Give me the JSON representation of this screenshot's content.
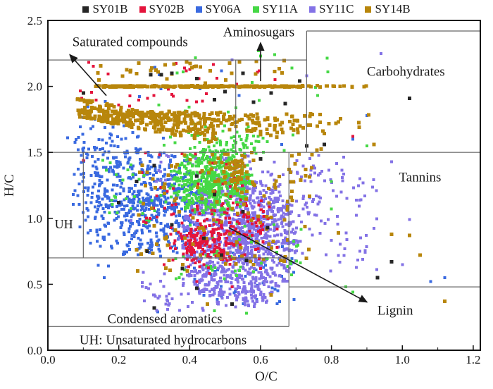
{
  "chart_data": {
    "type": "scatter",
    "title": "",
    "xlabel": "O/C",
    "ylabel": "H/C",
    "xlim": [
      0,
      1.22
    ],
    "ylim": [
      0,
      2.5
    ],
    "grid": false,
    "legend_position": "top-center",
    "x_tick_values": [
      0,
      0.2,
      0.4,
      0.6,
      0.8,
      1.0,
      1.2
    ],
    "x_tick_labels": [
      "0.0",
      "0.2",
      "0.4",
      "0.6",
      "0.8",
      "1.0",
      "1.2"
    ],
    "x_minor_step": 0.1,
    "y_tick_values": [
      0,
      0.5,
      1.0,
      1.5,
      2.0,
      2.5
    ],
    "y_tick_labels": [
      "0.0",
      "0.5",
      "1.0",
      "1.5",
      "2.0",
      "2.5"
    ],
    "seed": 1234567,
    "line_color": "#666666",
    "border_color": "#111111",
    "legend_order": [
      "SY01B",
      "SY02B",
      "SY06A",
      "SY11A",
      "SY11C",
      "SY14B"
    ],
    "region_lines": [
      {
        "x1": 0,
        "y1": 2.2,
        "x2": 0.73,
        "y2": 2.2
      },
      {
        "x1": 0,
        "y1": 1.5,
        "x2": 1.22,
        "y2": 1.5
      },
      {
        "x1": 0.53,
        "y1": 1.5,
        "x2": 0.53,
        "y2": 2.2
      },
      {
        "x1": 0.73,
        "y1": 1.5,
        "x2": 0.73,
        "y2": 2.42
      },
      {
        "x1": 0.73,
        "y1": 2.42,
        "x2": 1.22,
        "y2": 2.42
      },
      {
        "x1": 0.1,
        "y1": 0.7,
        "x2": 0.1,
        "y2": 1.5
      },
      {
        "x1": 0,
        "y1": 0.7,
        "x2": 0.68,
        "y2": 0.7
      },
      {
        "x1": 0.68,
        "y1": 0.18,
        "x2": 0.68,
        "y2": 1.5
      },
      {
        "x1": 0,
        "y1": 0.18,
        "x2": 0.68,
        "y2": 0.18
      },
      {
        "x1": 0.68,
        "y1": 0.48,
        "x2": 1.22,
        "y2": 0.48
      }
    ],
    "region_labels": [
      {
        "id": "saturated-compounds",
        "label": "Saturated compounds",
        "x": 0.232,
        "y": 2.335,
        "size": 19
      },
      {
        "id": "aminosugars",
        "label": "Aminosugars",
        "x": 0.595,
        "y": 2.41,
        "size": 19
      },
      {
        "id": "carbohydrates",
        "label": "Carbohydrates",
        "x": 1.01,
        "y": 2.11,
        "size": 19
      },
      {
        "id": "tannins",
        "label": "Tannins",
        "x": 1.05,
        "y": 1.31,
        "size": 19
      },
      {
        "id": "lignin",
        "label": "Lignin",
        "x": 0.98,
        "y": 0.3,
        "size": 19
      },
      {
        "id": "condensed-aromatics",
        "label": "Condensed aromatics",
        "x": 0.33,
        "y": 0.235,
        "size": 19
      },
      {
        "id": "uh",
        "label": "UH",
        "x": 0.045,
        "y": 0.955,
        "size": 18
      }
    ],
    "footnote": {
      "label": "UH: Unsaturated hydrocarbons",
      "x": 0.325,
      "y": 0.075,
      "size": 19
    },
    "arrows": [
      {
        "id": "saturated-arrow",
        "x1": 0.165,
        "y1": 1.93,
        "x2": 0.062,
        "y2": 2.24
      },
      {
        "id": "aminosugars-arrow",
        "x1": 0.6,
        "y1": 2.04,
        "x2": 0.6,
        "y2": 2.33
      },
      {
        "id": "lignin-arrow",
        "x1": 0.51,
        "y1": 0.93,
        "x2": 0.9,
        "y2": 0.365
      }
    ],
    "series": [
      {
        "name": "SY06A",
        "color": "#3a6ae0",
        "size": 4,
        "clusters": [
          {
            "type": "rays",
            "cx": 0.28,
            "cy": 1.12,
            "ax": 0.17,
            "ay": 0.42,
            "nrays": 30,
            "a0": 0,
            "a1": 360,
            "rpow": 0.72,
            "n": 620
          },
          {
            "type": "gauss",
            "cx": 0.12,
            "cy": 1.3,
            "sx": 0.035,
            "sy": 0.28,
            "n": 90
          },
          {
            "type": "gauss",
            "cx": 0.19,
            "cy": 1.63,
            "sx": 0.05,
            "sy": 0.07,
            "n": 25
          },
          {
            "type": "uniform",
            "x0": 0.12,
            "x1": 0.55,
            "y0": 1.78,
            "y1": 2.15,
            "n": 10
          },
          {
            "type": "uniform",
            "x0": 0.4,
            "x1": 0.7,
            "y0": 0.35,
            "y1": 0.8,
            "n": 55
          },
          {
            "type": "points",
            "pts": [
              [
                0.9,
                1.78
              ],
              [
                1.12,
                0.55
              ],
              [
                0.31,
                0.29
              ],
              [
                0.66,
                1.56
              ],
              [
                0.86,
                1.6
              ],
              [
                1.08,
                0.52
              ]
            ]
          }
        ]
      },
      {
        "name": "SY11C",
        "color": "#8372e6",
        "size": 4,
        "clusters": [
          {
            "type": "rays",
            "cx": 0.54,
            "cy": 0.82,
            "ax": 0.17,
            "ay": 0.5,
            "nrays": 40,
            "a0": 0,
            "a1": 360,
            "rpow": 0.7,
            "n": 1150,
            "clip": [
              0.2,
              0.95,
              0.26,
              1.45
            ]
          },
          {
            "type": "gauss",
            "cx": 0.63,
            "cy": 1.08,
            "sx": 0.1,
            "sy": 0.14,
            "n": 160
          },
          {
            "type": "uniform",
            "x0": 0.3,
            "x1": 0.85,
            "y0": 1.25,
            "y1": 1.48,
            "n": 70
          },
          {
            "type": "uniform",
            "x0": 0.78,
            "x1": 0.93,
            "y0": 0.6,
            "y1": 1.3,
            "n": 38
          },
          {
            "type": "uniform",
            "x0": 0.25,
            "x1": 0.45,
            "y0": 0.3,
            "y1": 0.6,
            "n": 40
          },
          {
            "type": "points",
            "pts": [
              [
                0.94,
                2.25
              ],
              [
                0.73,
                2.08
              ],
              [
                0.52,
                2.2
              ],
              [
                1.02,
                0.99
              ],
              [
                1.0,
                0.65
              ],
              [
                0.88,
                1.3
              ],
              [
                0.97,
                1.43
              ]
            ]
          }
        ]
      },
      {
        "name": "SY11A",
        "color": "#46d846",
        "size": 4,
        "clusters": [
          {
            "type": "rays",
            "cx": 0.46,
            "cy": 1.27,
            "ax": 0.115,
            "ay": 0.25,
            "nrays": 26,
            "a0": 0,
            "a1": 360,
            "rpow": 0.7,
            "n": 560
          },
          {
            "type": "gauss",
            "cx": 0.5,
            "cy": 1.56,
            "sx": 0.07,
            "sy": 0.07,
            "n": 85
          },
          {
            "type": "uniform",
            "x0": 0.3,
            "x1": 0.8,
            "y0": 1.7,
            "y1": 2.28,
            "n": 16
          },
          {
            "type": "uniform",
            "x0": 0.35,
            "x1": 0.72,
            "y0": 0.5,
            "y1": 1.0,
            "n": 50
          },
          {
            "type": "uniform",
            "x0": 0.15,
            "x1": 0.35,
            "y0": 0.95,
            "y1": 1.45,
            "n": 30
          },
          {
            "type": "points",
            "pts": [
              [
                0.6,
                2.23
              ],
              [
                0.64,
                2.24
              ],
              [
                0.79,
                2.11
              ],
              [
                0.9,
                1.55
              ],
              [
                0.47,
                0.3
              ],
              [
                0.56,
                0.28
              ],
              [
                0.8,
                1.28
              ],
              [
                0.8,
                1.07
              ],
              [
                0.84,
                0.48
              ],
              [
                0.86,
                0.44
              ]
            ]
          }
        ]
      },
      {
        "name": "SY02B",
        "color": "#e4143c",
        "size": 4,
        "clusters": [
          {
            "type": "gauss",
            "cx": 0.45,
            "cy": 0.82,
            "sx": 0.05,
            "sy": 0.09,
            "n": 210
          },
          {
            "type": "gauss",
            "cx": 0.56,
            "cy": 0.97,
            "sx": 0.055,
            "sy": 0.09,
            "n": 55
          },
          {
            "type": "uniform",
            "x0": 0.25,
            "x1": 0.55,
            "y0": 0.95,
            "y1": 1.5,
            "n": 45
          },
          {
            "type": "uniform",
            "x0": 0.08,
            "x1": 0.45,
            "y0": 1.88,
            "y1": 2.2,
            "n": 22
          },
          {
            "type": "uniform",
            "x0": 0.45,
            "x1": 0.65,
            "y0": 1.9,
            "y1": 2.25,
            "n": 6
          },
          {
            "type": "points",
            "pts": [
              [
                0.86,
                1.62
              ],
              [
                0.1,
                1.44
              ],
              [
                0.2,
                1.86
              ],
              [
                0.23,
                1.85
              ],
              [
                0.4,
                2.13
              ],
              [
                0.42,
                0.52
              ],
              [
                0.52,
                0.48
              ],
              [
                0.6,
                0.62
              ]
            ]
          }
        ]
      },
      {
        "name": "SY14B",
        "color": "#b8860b",
        "size": 5,
        "clusters": [
          {
            "type": "hline",
            "y": 2.0,
            "x0": 0.13,
            "x1": 0.72,
            "jy": 0.005,
            "n": 240
          },
          {
            "type": "hline",
            "y": 2.0,
            "x0": 0.72,
            "x1": 0.9,
            "jy": 0.005,
            "n": 14
          },
          {
            "type": "diag",
            "x0": 0.09,
            "y0": 1.9,
            "dx": 0.38,
            "dy": -0.2,
            "rows": 6,
            "rowGap": 0.025,
            "tpow": 1.2,
            "n": 270
          },
          {
            "type": "rays",
            "cx": 0.24,
            "cy": 1.8,
            "ax": 0.55,
            "ay": 0.28,
            "nrays": 12,
            "a0": -40,
            "a1": -2,
            "rpow": 0.9,
            "n": 170,
            "clip": [
              0.2,
              0.95,
              1.5,
              1.98
            ]
          },
          {
            "type": "gauss",
            "cx": 0.53,
            "cy": 1.35,
            "sx": 0.025,
            "sy": 0.09,
            "n": 60
          },
          {
            "type": "uniform",
            "x0": 0.12,
            "x1": 0.7,
            "y0": 2.02,
            "y1": 2.2,
            "n": 35
          },
          {
            "type": "uniform",
            "x0": 0.25,
            "x1": 0.75,
            "y0": 0.6,
            "y1": 1.5,
            "n": 130
          },
          {
            "type": "uniform",
            "x0": 0.75,
            "x1": 0.95,
            "y0": 1.5,
            "y1": 1.8,
            "n": 12
          },
          {
            "type": "points",
            "pts": [
              [
                1.12,
                0.37
              ],
              [
                1.05,
                0.72
              ],
              [
                0.97,
                0.88
              ],
              [
                0.45,
                0.35
              ],
              [
                0.63,
                0.42
              ],
              [
                1.02,
                0.87
              ],
              [
                0.82,
                0.89
              ]
            ]
          }
        ]
      },
      {
        "name": "SY01B",
        "color": "#262626",
        "size": 5,
        "clusters": [
          {
            "type": "points",
            "pts": [
              [
                0.35,
                2.1
              ],
              [
                0.42,
                2.06
              ],
              [
                0.5,
                1.96
              ],
              [
                0.55,
                2.1
              ],
              [
                0.63,
                1.95
              ],
              [
                0.71,
                2.04
              ],
              [
                0.1,
                1.95
              ],
              [
                0.29,
                2.09
              ],
              [
                0.32,
                2.09
              ],
              [
                0.47,
                1.9
              ],
              [
                0.58,
                1.88
              ],
              [
                0.67,
                1.87
              ],
              [
                0.73,
                1.55
              ],
              [
                0.78,
                1.56
              ],
              [
                1.02,
                1.91
              ],
              [
                0.3,
                1.4
              ],
              [
                0.42,
                1.32
              ],
              [
                0.35,
                0.95
              ],
              [
                0.49,
                0.72
              ],
              [
                0.55,
                1.05
              ],
              [
                0.62,
                0.93
              ],
              [
                0.28,
                0.75
              ],
              [
                0.42,
                0.47
              ],
              [
                0.52,
                0.35
              ],
              [
                0.3,
                0.32
              ],
              [
                0.56,
                0.68
              ],
              [
                0.97,
                0.67
              ],
              [
                0.93,
                0.55
              ],
              [
                0.2,
                1.12
              ],
              [
                0.25,
                1.28
              ],
              [
                0.47,
                1.18
              ],
              [
                0.6,
                1.45
              ],
              [
                0.38,
                0.62
              ],
              [
                0.44,
                0.85
              ]
            ]
          }
        ]
      }
    ]
  }
}
